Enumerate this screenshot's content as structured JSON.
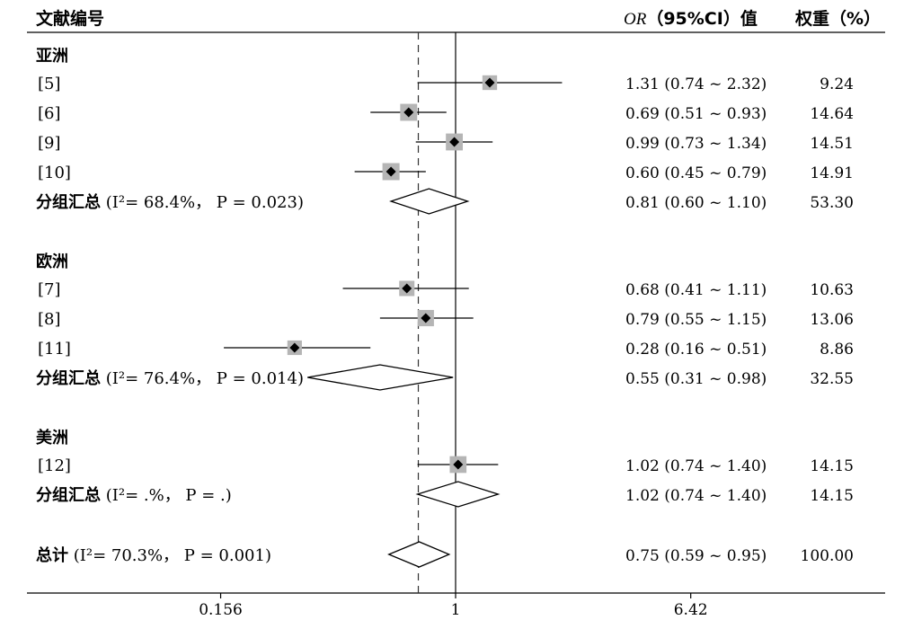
{
  "header": {
    "study_col": "文献编号",
    "or_col_italic": "OR",
    "or_col_rest": "（95%CI）值",
    "weight_col": "权重（%）"
  },
  "chart_data": {
    "type": "forest",
    "x_scale": "log",
    "x_ticks": [
      "0.156",
      "1",
      "6.42"
    ],
    "xlim": [
      0.156,
      6.42
    ],
    "reference_line": 1,
    "overall_line": 0.75,
    "rows": [
      {
        "kind": "group",
        "label": "亚洲"
      },
      {
        "kind": "study",
        "label": "[5]",
        "or": 1.31,
        "lo": 0.74,
        "hi": 2.32,
        "ci_text": "1.31 (0.74 ~ 2.32)",
        "weight": 9.24,
        "weight_text": "9.24"
      },
      {
        "kind": "study",
        "label": "[6]",
        "or": 0.69,
        "lo": 0.51,
        "hi": 0.93,
        "ci_text": "0.69 (0.51 ~ 0.93)",
        "weight": 14.64,
        "weight_text": "14.64"
      },
      {
        "kind": "study",
        "label": "[9]",
        "or": 0.99,
        "lo": 0.73,
        "hi": 1.34,
        "ci_text": "0.99 (0.73 ~ 1.34)",
        "weight": 14.51,
        "weight_text": "14.51"
      },
      {
        "kind": "study",
        "label": "[10]",
        "or": 0.6,
        "lo": 0.45,
        "hi": 0.79,
        "ci_text": "0.60 (0.45 ~ 0.79)",
        "weight": 14.91,
        "weight_text": "14.91"
      },
      {
        "kind": "subtotal",
        "label_bold": "分组汇总",
        "label_stat": "(I²= 68.4%， P = 0.023)",
        "or": 0.81,
        "lo": 0.6,
        "hi": 1.1,
        "ci_text": "0.81 (0.60 ~ 1.10)",
        "weight": 53.3,
        "weight_text": "53.30"
      },
      {
        "kind": "gap"
      },
      {
        "kind": "group",
        "label": "欧洲"
      },
      {
        "kind": "study",
        "label": "[7]",
        "or": 0.68,
        "lo": 0.41,
        "hi": 1.11,
        "ci_text": "0.68 (0.41 ~ 1.11)",
        "weight": 10.63,
        "weight_text": "10.63"
      },
      {
        "kind": "study",
        "label": "[8]",
        "or": 0.79,
        "lo": 0.55,
        "hi": 1.15,
        "ci_text": "0.79 (0.55 ~ 1.15)",
        "weight": 13.06,
        "weight_text": "13.06"
      },
      {
        "kind": "study",
        "label": "[11]",
        "or": 0.28,
        "lo": 0.16,
        "hi": 0.51,
        "ci_text": "0.28 (0.16 ~ 0.51)",
        "weight": 8.86,
        "weight_text": "8.86"
      },
      {
        "kind": "subtotal",
        "label_bold": "分组汇总",
        "label_stat": "(I²= 76.4%， P = 0.014)",
        "or": 0.55,
        "lo": 0.31,
        "hi": 0.98,
        "ci_text": "0.55 (0.31 ~ 0.98)",
        "weight": 32.55,
        "weight_text": "32.55"
      },
      {
        "kind": "gap"
      },
      {
        "kind": "group",
        "label": "美洲"
      },
      {
        "kind": "study",
        "label": "[12]",
        "or": 1.02,
        "lo": 0.74,
        "hi": 1.4,
        "ci_text": "1.02 (0.74 ~ 1.40)",
        "weight": 14.15,
        "weight_text": "14.15"
      },
      {
        "kind": "subtotal",
        "label_bold": "分组汇总",
        "label_stat": "(I²= .%， P = .)",
        "or": 1.02,
        "lo": 0.74,
        "hi": 1.4,
        "ci_text": "1.02 (0.74 ~ 1.40)",
        "weight": 14.15,
        "weight_text": "14.15"
      },
      {
        "kind": "gap"
      },
      {
        "kind": "total",
        "label_bold": "总计",
        "label_stat": "(I²= 70.3%， P = 0.001)",
        "or": 0.75,
        "lo": 0.59,
        "hi": 0.95,
        "ci_text": "0.75 (0.59 ~ 0.95)",
        "weight": 100.0,
        "weight_text": "100.00"
      }
    ]
  }
}
